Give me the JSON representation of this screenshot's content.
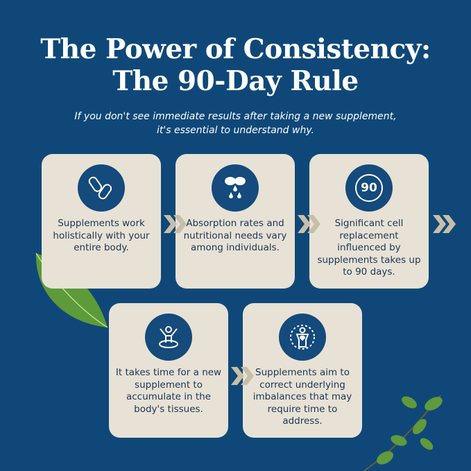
{
  "title": {
    "line1": "The Power of Consistency:",
    "line2": "The 90-Day Rule"
  },
  "subtitle": {
    "line1": "If you don't see immediate results after taking a new supplement,",
    "line2": "it's essential to understand why."
  },
  "cards": [
    {
      "icon": "capsules-icon",
      "text": "Supplements work holistically with your entire body."
    },
    {
      "icon": "capsule-drops-icon",
      "text": "Absorption rates and nutritional needs vary among individuals."
    },
    {
      "icon": "ninety-days-icon",
      "icon_text": "90",
      "text": "Significant cell replacement influenced by supplements takes up to 90 days."
    },
    {
      "icon": "body-absorption-icon",
      "text": "It takes time for a new supplement to accumulate in the body's tissues."
    },
    {
      "icon": "body-balance-icon",
      "text": "Supplements aim to correct underlying imbalances that may require time to address."
    }
  ],
  "colors": {
    "background": "#0f4878",
    "card": "#e7e2d5",
    "text": "#1c3557",
    "chevron": "#c8bfa8"
  }
}
